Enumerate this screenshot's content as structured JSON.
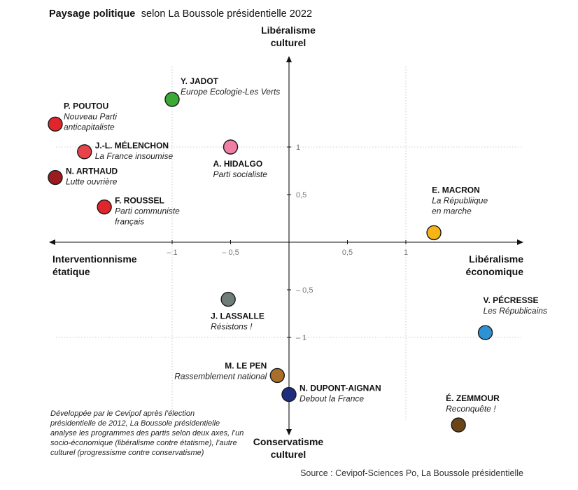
{
  "chart_data": {
    "type": "scatter",
    "title_bold": "Paysage politique",
    "title_rest": "selon La Boussole présidentielle 2022",
    "axes": {
      "top_label": [
        "Libéralisme",
        "culturel"
      ],
      "bottom_label": [
        "Conservatisme",
        "culturel"
      ],
      "left_label": [
        "Interventionnisme",
        "étatique"
      ],
      "right_label": [
        "Libéralisme",
        "économique"
      ]
    },
    "xlim": [
      -2.05,
      2.05
    ],
    "ylim": [
      -2.05,
      2.05
    ],
    "x_ticks": [
      {
        "value": -1,
        "label": "– 1"
      },
      {
        "value": -0.5,
        "label": "– 0,5"
      },
      {
        "value": 0.5,
        "label": "0,5"
      },
      {
        "value": 1,
        "label": "1"
      }
    ],
    "y_ticks": [
      {
        "value": 1,
        "label": "1"
      },
      {
        "value": 0.5,
        "label": "0,5"
      },
      {
        "value": -0.5,
        "label": "– 0,5"
      },
      {
        "value": -1,
        "label": "– 1"
      }
    ],
    "grid_values": [
      -1,
      1
    ],
    "points": [
      {
        "name": "Y. JADOT",
        "party": [
          "Europe Ecologie-Les Verts"
        ],
        "x": -1.0,
        "y": 1.5,
        "color": "#3aaa35",
        "label_side": "upper-right"
      },
      {
        "name": "P. POUTOU",
        "party": [
          "Nouveau Parti",
          "anticapitaliste"
        ],
        "x": -2.0,
        "y": 1.24,
        "color": "#e0262b",
        "label_side": "upper-right"
      },
      {
        "name": "J.-L. MÉLENCHON",
        "party": [
          "La France insoumise"
        ],
        "x": -1.75,
        "y": 0.95,
        "color": "#e8434a",
        "label_side": "right"
      },
      {
        "name": "A. HIDALGO",
        "party": [
          "Parti socialiste"
        ],
        "x": -0.5,
        "y": 1.0,
        "color": "#ef7fa4",
        "label_side": "below"
      },
      {
        "name": "N. ARTHAUD",
        "party": [
          "Lutte ouvrière"
        ],
        "x": -2.0,
        "y": 0.68,
        "color": "#9c1b20",
        "label_side": "right"
      },
      {
        "name": "F. ROUSSEL",
        "party": [
          "Parti communiste",
          "français"
        ],
        "x": -1.58,
        "y": 0.37,
        "color": "#e0262b",
        "label_side": "right"
      },
      {
        "name": "E. MACRON",
        "party": [
          "La Républiique",
          "en marche"
        ],
        "x": 1.24,
        "y": 0.1,
        "color": "#f6b416",
        "label_side": "above-left"
      },
      {
        "name": "J. LASSALLE",
        "party": [
          "Résistons !"
        ],
        "x": -0.52,
        "y": -0.6,
        "color": "#6f7d77",
        "label_side": "below"
      },
      {
        "name": "V. PÉCRESSE",
        "party": [
          "Les Républicains"
        ],
        "x": 1.68,
        "y": -0.95,
        "color": "#2e91d4",
        "label_side": "above-left"
      },
      {
        "name": "M. LE PEN",
        "party": [
          "Rassemblement national"
        ],
        "x": -0.1,
        "y": -1.4,
        "color": "#a86e2a",
        "label_side": "left"
      },
      {
        "name": "N. DUPONT-AIGNAN",
        "party": [
          "Debout la France"
        ],
        "x": 0.0,
        "y": -1.6,
        "color": "#1e2d80",
        "label_side": "right"
      },
      {
        "name": "É. ZEMMOUR",
        "party": [
          "Reconquête !"
        ],
        "x": 1.45,
        "y": -1.92,
        "color": "#6b4418",
        "label_side": "above"
      }
    ],
    "note_lines": [
      "Développée par le Cevipof après l’élection",
      "présidentielle de 2012, La Boussole présidentielle",
      "analyse les programmes des partis selon deux axes, l’un",
      "socio-économique (libéralisme contre étatisme), l’autre",
      "culturel (progressisme contre conservatisme)"
    ],
    "source": "Source : Cevipof-Sciences Po, La Boussole présidentielle"
  }
}
